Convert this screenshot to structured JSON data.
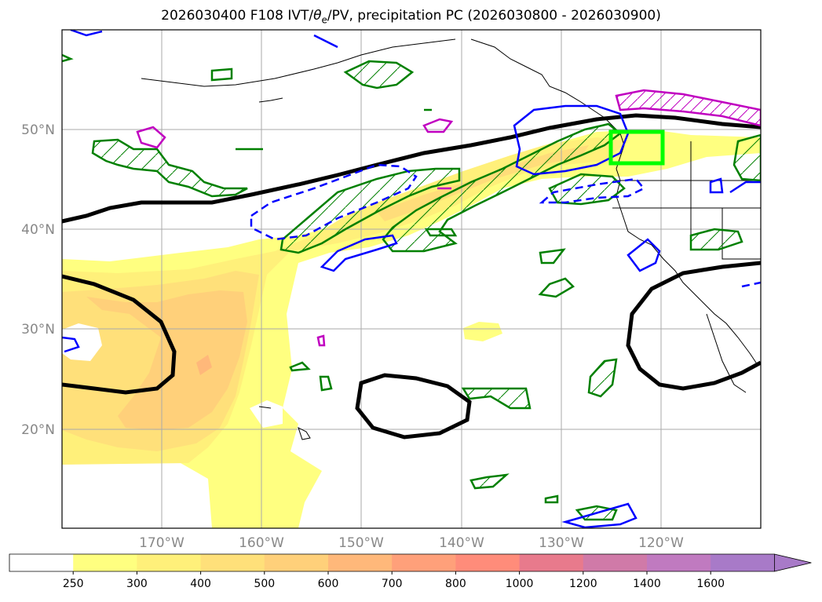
{
  "title": {
    "prefix": "2026030400 F108 IVT/",
    "theta": "θ",
    "theta_sub": "e",
    "suffix": "/PV, precipitation PC (2026030800 - 2026030900)"
  },
  "axes": {
    "latitude_labels": [
      "50°N",
      "40°N",
      "30°N",
      "20°N"
    ],
    "longitude_labels": [
      "170°W",
      "160°W",
      "150°W",
      "140°W",
      "130°W",
      "120°W"
    ]
  },
  "colorbar": {
    "ticks": [
      "250",
      "300",
      "400",
      "500",
      "600",
      "700",
      "800",
      "1000",
      "1200",
      "1400",
      "1600"
    ],
    "colors": [
      "#ffffff",
      "#ffff80",
      "#fff07a",
      "#ffe07a",
      "#ffd07a",
      "#ffb87a",
      "#ffa07a",
      "#ff8c7a",
      "#e87a8c",
      "#d07aa8",
      "#c07ac0",
      "#a87ac8"
    ]
  },
  "legend_colors": {
    "theta_e": "#008000",
    "pv_positive": "#0000ff",
    "pv_negative": "#c000c0",
    "ivt_line": "#000000",
    "target_box": "#00ff00"
  }
}
